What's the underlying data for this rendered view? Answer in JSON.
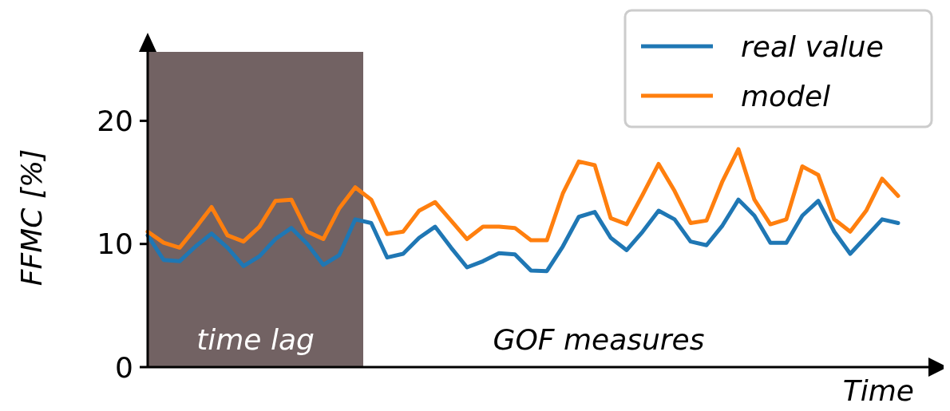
{
  "chart_data": {
    "type": "line",
    "xlabel": "Time",
    "ylabel": "FFMC [%]",
    "ylim": [
      0,
      25.6
    ],
    "yticks": [
      0,
      10,
      20
    ],
    "grid": false,
    "legend": "top right",
    "line_style": "solid",
    "marker": "none",
    "categories": [
      null,
      null,
      null,
      null,
      null,
      null,
      null,
      null,
      null,
      null,
      null,
      null,
      null,
      null,
      null,
      null,
      null,
      null,
      null,
      null,
      null,
      null,
      null,
      null,
      null,
      null,
      null,
      null,
      null,
      null,
      null,
      null,
      null,
      null,
      null,
      null,
      null,
      null,
      null,
      null,
      null,
      null,
      null,
      null,
      null,
      null,
      null,
      null
    ],
    "series": [
      {
        "name": "real value",
        "color": "#1f77b4",
        "values": [
          10.7,
          8.7,
          8.6,
          9.8,
          10.85,
          9.7,
          8.2,
          9.0,
          10.4,
          11.3,
          10.0,
          8.3,
          9.1,
          12.0,
          11.7,
          8.9,
          9.2,
          10.5,
          11.4,
          9.7,
          8.1,
          8.6,
          9.25,
          9.15,
          7.85,
          7.8,
          9.8,
          12.2,
          12.6,
          10.5,
          9.5,
          11.0,
          12.7,
          12.0,
          10.2,
          9.9,
          11.5,
          13.6,
          12.3,
          10.1,
          10.1,
          12.3,
          13.5,
          11.0,
          9.2,
          10.6,
          12.0,
          11.7
        ]
      },
      {
        "name": "model",
        "color": "#ff7f0e",
        "values": [
          11.0,
          10.1,
          9.7,
          11.3,
          13.0,
          10.7,
          10.2,
          11.4,
          13.5,
          13.6,
          11.0,
          10.4,
          12.9,
          14.6,
          13.6,
          10.8,
          11.0,
          12.7,
          13.4,
          11.9,
          10.4,
          11.4,
          11.4,
          11.3,
          10.3,
          10.3,
          14.1,
          16.7,
          16.4,
          12.1,
          11.6,
          14.0,
          16.5,
          14.3,
          11.7,
          11.9,
          15.1,
          17.7,
          13.6,
          11.6,
          12.0,
          16.3,
          15.6,
          12.0,
          11.0,
          12.7,
          15.3,
          13.9
        ]
      }
    ],
    "annotations": [
      "time lag",
      "GOF measures"
    ]
  }
}
